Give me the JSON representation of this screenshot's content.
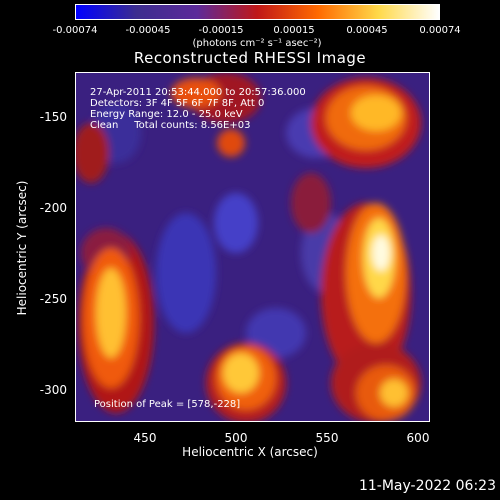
{
  "colorbar": {
    "ticks": [
      "-0.00074",
      "-0.00045",
      "-0.00015",
      "0.00015",
      "0.00045",
      "0.00074"
    ],
    "units": "(photons cm⁻² s⁻¹ asec⁻²)",
    "colors": [
      "#0000ff",
      "#3c2d8f",
      "#5c2a9a",
      "#c01818",
      "#ff6a00",
      "#ffd94a",
      "#ffffff"
    ]
  },
  "title": "Reconstructed RHESSI Image",
  "annotations": {
    "time_range": "27-Apr-2011 20:53:44.000 to 20:57:36.000",
    "detectors": "Detectors: 3F 4F 5F 6F 7F 8F, Att 0",
    "energy_range": "Energy Range: 12.0 - 25.0 keV",
    "clean_counts": "Clean     Total counts: 8.56E+03",
    "peak": "Position of Peak = [578,-228]"
  },
  "axes": {
    "xlabel": "Heliocentric X (arcsec)",
    "ylabel": "Heliocentric Y (arcsec)",
    "xticks": [
      "450",
      "500",
      "550",
      "600"
    ],
    "yticks": [
      "-150",
      "-200",
      "-250",
      "-300"
    ]
  },
  "datestamp": "11-May-2022 06:23"
}
